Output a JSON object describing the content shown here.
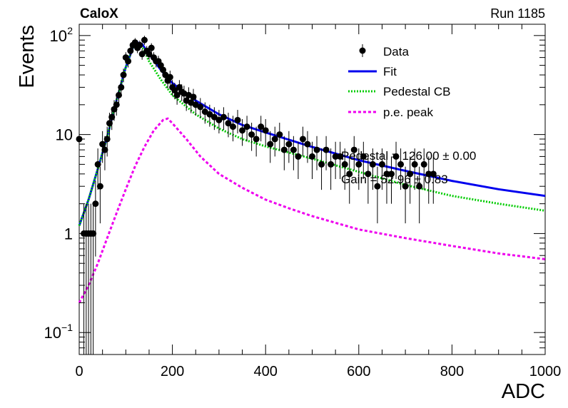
{
  "header": {
    "left_label": "CaloX",
    "right_label": "Run 1185"
  },
  "chart_data": {
    "type": "scatter",
    "title": "",
    "xlabel": "ADC",
    "ylabel": "Events",
    "xlim": [
      0,
      1000
    ],
    "ylim": [
      0.06,
      130
    ],
    "yscale": "log",
    "grid": false,
    "legend_position": "top-right",
    "x_ticks": [
      "0",
      "200",
      "400",
      "600",
      "800",
      "1000"
    ],
    "y_ticks": [
      {
        "base": "10",
        "exp": "2",
        "value": 100
      },
      {
        "base": "10",
        "exp": "",
        "value": 10
      },
      {
        "base": "1",
        "exp": "",
        "value": 1
      },
      {
        "base": "10",
        "exp": "−1",
        "value": 0.1
      }
    ],
    "fit_text": [
      "Pedestal = 126.00 ± 0.00",
      "Gain = 52.96 ± 0.83"
    ],
    "series": [
      {
        "name": "Data",
        "kind": "points",
        "color": "#000000",
        "x": [
          0,
          10,
          15,
          20,
          25,
          30,
          35,
          40,
          45,
          50,
          55,
          60,
          65,
          70,
          75,
          80,
          85,
          90,
          95,
          100,
          105,
          110,
          115,
          120,
          125,
          130,
          135,
          140,
          145,
          150,
          155,
          160,
          165,
          170,
          175,
          180,
          185,
          190,
          195,
          200,
          205,
          210,
          215,
          220,
          225,
          230,
          235,
          240,
          245,
          250,
          260,
          270,
          280,
          290,
          300,
          310,
          320,
          330,
          340,
          350,
          360,
          370,
          380,
          390,
          400,
          410,
          420,
          430,
          440,
          450,
          460,
          470,
          480,
          490,
          500,
          510,
          520,
          530,
          540,
          550,
          560,
          570,
          580,
          590,
          600,
          610,
          620,
          630,
          640,
          650,
          660,
          670,
          680,
          690,
          700,
          710,
          720,
          730,
          740,
          750,
          760
        ],
        "y": [
          9,
          1,
          1,
          1,
          1,
          1,
          2,
          5,
          3,
          8,
          7,
          9,
          13,
          15,
          18,
          20,
          25,
          30,
          40,
          60,
          55,
          70,
          80,
          85,
          75,
          80,
          65,
          90,
          70,
          65,
          75,
          60,
          55,
          55,
          50,
          45,
          40,
          35,
          38,
          30,
          28,
          25,
          30,
          27,
          26,
          22,
          25,
          21,
          24,
          20,
          19,
          17,
          16,
          15,
          14,
          15,
          13,
          12,
          14,
          11,
          12,
          10,
          9,
          12,
          11,
          8,
          9,
          10,
          7,
          8,
          7,
          6,
          9,
          8,
          6,
          7,
          5,
          7,
          5,
          6,
          6,
          5,
          4,
          7,
          5,
          6,
          4,
          5,
          3,
          5,
          4,
          4,
          6,
          5,
          3,
          4,
          5,
          3,
          5,
          4,
          4
        ]
      },
      {
        "name": "Fit",
        "kind": "line",
        "color": "#0000ee",
        "x": [
          0,
          20,
          40,
          60,
          80,
          100,
          115,
          125,
          135,
          150,
          175,
          200,
          250,
          300,
          350,
          400,
          500,
          600,
          700,
          800,
          900,
          1000
        ],
        "y": [
          1.2,
          2.2,
          4.5,
          9.5,
          22,
          48,
          75,
          85,
          82,
          65,
          45,
          33,
          22,
          16,
          12.5,
          10.5,
          7.5,
          5.5,
          4.3,
          3.4,
          2.8,
          2.4
        ]
      },
      {
        "name": "Pedestal CB",
        "kind": "dotted",
        "color": "#00cc00",
        "x": [
          0,
          20,
          40,
          60,
          80,
          100,
          115,
          125,
          135,
          150,
          175,
          200,
          250,
          300,
          350,
          400,
          500,
          600,
          700,
          800,
          900,
          1000
        ],
        "y": [
          1.2,
          2.2,
          4.5,
          9.5,
          22,
          48,
          75,
          84,
          78,
          55,
          36,
          25,
          16,
          11.5,
          9,
          7.6,
          5.7,
          4.2,
          3.1,
          2.4,
          2,
          1.7
        ]
      },
      {
        "name": "p.e. peak",
        "kind": "dotted",
        "color": "#ee00ee",
        "x": [
          0,
          20,
          40,
          60,
          80,
          100,
          120,
          140,
          160,
          180,
          190,
          200,
          230,
          260,
          300,
          350,
          400,
          450,
          500,
          600,
          700,
          800,
          900,
          1000
        ],
        "y": [
          0.2,
          0.3,
          0.5,
          0.9,
          1.6,
          2.8,
          4.8,
          7.5,
          11,
          14,
          14.5,
          13,
          9,
          6,
          4,
          2.9,
          2.2,
          1.8,
          1.5,
          1.1,
          0.9,
          0.75,
          0.63,
          0.55
        ]
      }
    ]
  }
}
